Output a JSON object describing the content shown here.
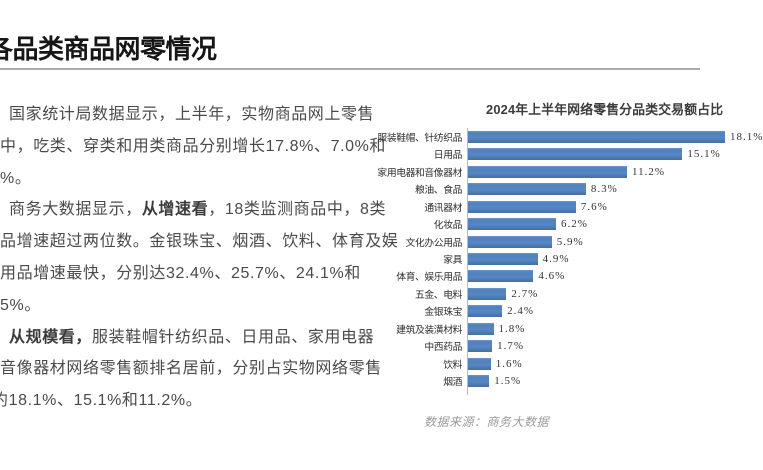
{
  "slide": {
    "title": "各品类商品网零情况"
  },
  "article": {
    "p1": {
      "l1": "国家统计局数据显示，上半年，实物商品网上零售",
      "l2": "中，吃类、穿类和用类商品分别增长17.8%、7.0%和",
      "l3": "%。"
    },
    "p2": {
      "l1a": "商务大数据显示，",
      "l1b": "从增速看",
      "l1c": "，18类监测商品中，8类",
      "l2": "品增速超过两位数。金银珠宝、烟酒、饮料、体育及娱",
      "l3": "用品增速最快，分别达32.4%、25.7%、24.1%和",
      "l4": "5%。"
    },
    "p3": {
      "l1a": "从规模看，",
      "l1b": "服装鞋帽针纺织品、日用品、家用电器",
      "l2": "音像器材网络零售额排名居前，分别占实物网络零售",
      "l3": "约18.1%、15.1%和11.2%。"
    }
  },
  "chart": {
    "title": "2024年上半年网络零售分品类交易额占比",
    "source_note": "数据来源：商务大数据"
  },
  "chart_data": {
    "type": "bar",
    "orientation": "horizontal",
    "title": "2024年上半年网络零售分品类交易额占比",
    "categories": [
      "服装鞋帽、针纺织品",
      "日用品",
      "家用电器和音像器材",
      "粮油、食品",
      "通讯器材",
      "化妆品",
      "文化办公用品",
      "家具",
      "体育、娱乐用品",
      "五金、电料",
      "金银珠宝",
      "建筑及装潢材料",
      "中西药品",
      "饮料",
      "烟酒"
    ],
    "values": [
      18.1,
      15.1,
      11.2,
      8.3,
      7.6,
      6.2,
      5.9,
      4.9,
      4.6,
      2.7,
      2.4,
      1.8,
      1.7,
      1.6,
      1.5
    ],
    "unit": "%",
    "xlim": [
      0,
      20
    ],
    "grid": false,
    "legend": false,
    "bar_color": "#4f81bd",
    "source": "商务大数据"
  }
}
